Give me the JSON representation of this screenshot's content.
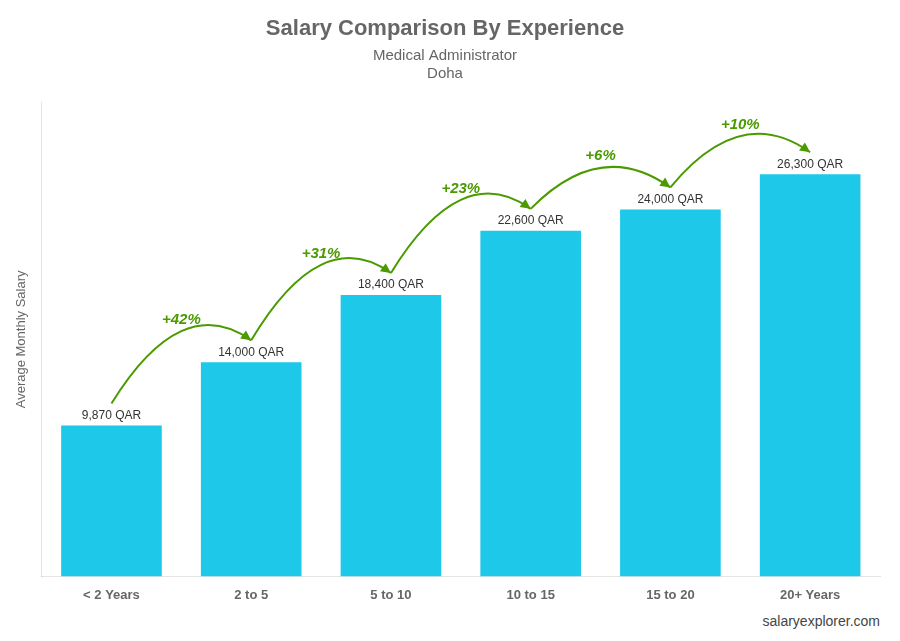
{
  "chart_data": {
    "type": "bar",
    "title": "Salary Comparison By Experience",
    "subtitle": [
      "Medical Administrator",
      "Doha"
    ],
    "ylabel": "Average Monthly Salary",
    "annotations": [
      "salaryexplorer.com"
    ],
    "categories": [
      "< 2 Years",
      "2 to 5",
      "5 to 10",
      "10 to 15",
      "15 to 20",
      "20+ Years"
    ],
    "values": [
      9870,
      14000,
      18400,
      22600,
      24000,
      26300
    ],
    "value_labels": [
      "9,870 QAR",
      "14,000 QAR",
      "18,400 QAR",
      "22,600 QAR",
      "24,000 QAR",
      "26,300 QAR"
    ],
    "change_labels": [
      null,
      "+42%",
      "+31%",
      "+23%",
      "+6%",
      "+10%"
    ],
    "color": "#1EC8E8",
    "ylim": [
      0,
      31000
    ],
    "grid": false,
    "data_labels": true,
    "tick_labels": "x"
  }
}
